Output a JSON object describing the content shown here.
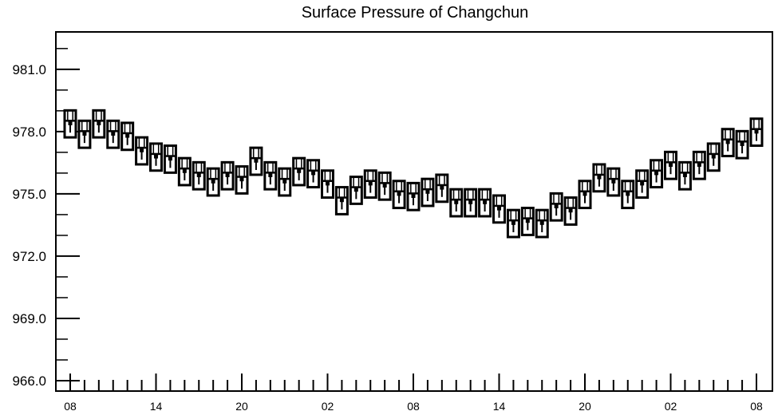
{
  "chart_data": {
    "type": "boxplot",
    "title": "Surface Pressure of Changchun",
    "xlabel": "",
    "ylabel": "",
    "ylim": [
      965.5,
      982.8
    ],
    "y_ticks": [
      "966.0",
      "969.0",
      "972.0",
      "975.0",
      "978.0",
      "981.0"
    ],
    "x_tick_labels": [
      "08",
      "14",
      "20",
      "02",
      "08",
      "14",
      "20",
      "02",
      "08"
    ],
    "grid": false,
    "legend": "none",
    "box_color": "#000000",
    "series": [
      {
        "values": [
          978.4,
          977.9,
          978.4,
          977.9,
          977.8,
          977.1,
          976.8,
          976.7,
          976.1,
          975.9,
          975.6,
          975.9,
          975.7,
          976.6,
          975.9,
          975.6,
          976.1,
          976.0,
          975.5,
          974.7,
          975.2,
          975.5,
          975.4,
          975.0,
          974.9,
          975.1,
          975.3,
          974.6,
          974.6,
          974.6,
          974.3,
          973.6,
          973.7,
          973.6,
          974.4,
          974.2,
          975.0,
          975.8,
          975.6,
          975.0,
          975.5,
          976.0,
          976.4,
          975.9,
          976.4,
          976.8,
          977.5,
          977.4,
          978.0
        ]
      }
    ]
  }
}
